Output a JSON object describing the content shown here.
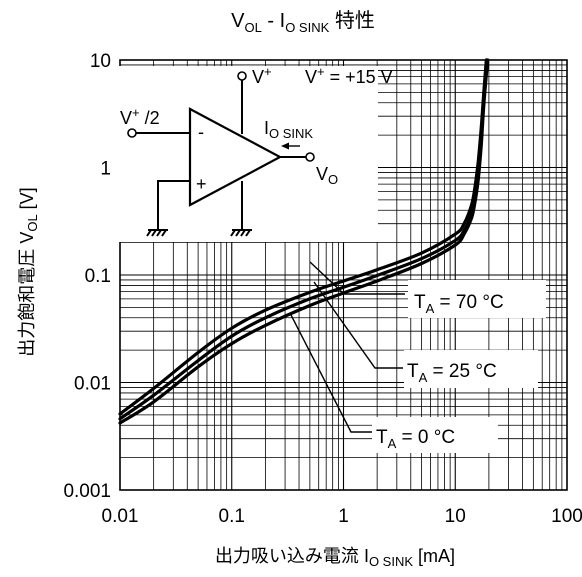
{
  "chart_data": {
    "type": "line",
    "title": {
      "main": "V",
      "sub1": "OL",
      "mid": " - I",
      "sub2": "O SINK",
      "tail": " 特性"
    },
    "xlabel": {
      "main": "出力吸い込み電流 I",
      "sub": "O SINK",
      "unit": " [mA]"
    },
    "ylabel": {
      "main": "出力飽和電圧 V",
      "sub": "OL",
      "unit": " [V]"
    },
    "x_scale": "log",
    "y_scale": "log",
    "xlim": [
      0.01,
      100
    ],
    "ylim": [
      0.001,
      10
    ],
    "x_ticks": [
      "0.01",
      "0.1",
      "1",
      "10",
      "100"
    ],
    "y_ticks": [
      "0.001",
      "0.01",
      "0.1",
      "1",
      "10"
    ],
    "grid": true,
    "series": [
      {
        "name": "T_A = 70 °C",
        "label": {
          "pre": "T",
          "sub": "A",
          "post": " = 70 °C"
        },
        "x": [
          0.01,
          0.02,
          0.05,
          0.1,
          0.2,
          0.5,
          1,
          2,
          5,
          10,
          12,
          14,
          15,
          16,
          17,
          18,
          19
        ],
        "y": [
          0.0051,
          0.0088,
          0.019,
          0.032,
          0.047,
          0.069,
          0.088,
          0.112,
          0.16,
          0.24,
          0.3,
          0.45,
          0.65,
          1.1,
          2.2,
          5,
          10
        ]
      },
      {
        "name": "T_A = 25 °C",
        "label": {
          "pre": "T",
          "sub": "A",
          "post": " = 25 °C"
        },
        "x": [
          0.01,
          0.02,
          0.05,
          0.1,
          0.2,
          0.5,
          1,
          2,
          5,
          10,
          12,
          14,
          15,
          16,
          17,
          18,
          19
        ],
        "y": [
          0.0046,
          0.0076,
          0.016,
          0.027,
          0.04,
          0.06,
          0.077,
          0.099,
          0.142,
          0.21,
          0.26,
          0.37,
          0.52,
          0.85,
          1.8,
          4.5,
          10
        ]
      },
      {
        "name": "T_A = 0 °C",
        "label": {
          "pre": "T",
          "sub": "A",
          "post": " = 0 °C"
        },
        "x": [
          0.01,
          0.02,
          0.05,
          0.1,
          0.2,
          0.5,
          1,
          2,
          5,
          10,
          12,
          14,
          15,
          16,
          17,
          18,
          19.5
        ],
        "y": [
          0.0042,
          0.0066,
          0.014,
          0.023,
          0.034,
          0.052,
          0.068,
          0.088,
          0.128,
          0.19,
          0.24,
          0.34,
          0.47,
          0.75,
          1.5,
          3.8,
          10
        ]
      }
    ],
    "inset": {
      "supply": {
        "pre": "V",
        "sup": "+",
        "post": " = +15 V"
      },
      "vplus": {
        "pre": "V",
        "sup": "+"
      },
      "half": {
        "pre": "V",
        "sup": "+",
        "post": " /2"
      },
      "isink": {
        "pre": "I",
        "sub": "O SINK"
      },
      "vo": {
        "pre": "V",
        "sub": "O"
      },
      "minus": "-",
      "plus": "+"
    }
  }
}
